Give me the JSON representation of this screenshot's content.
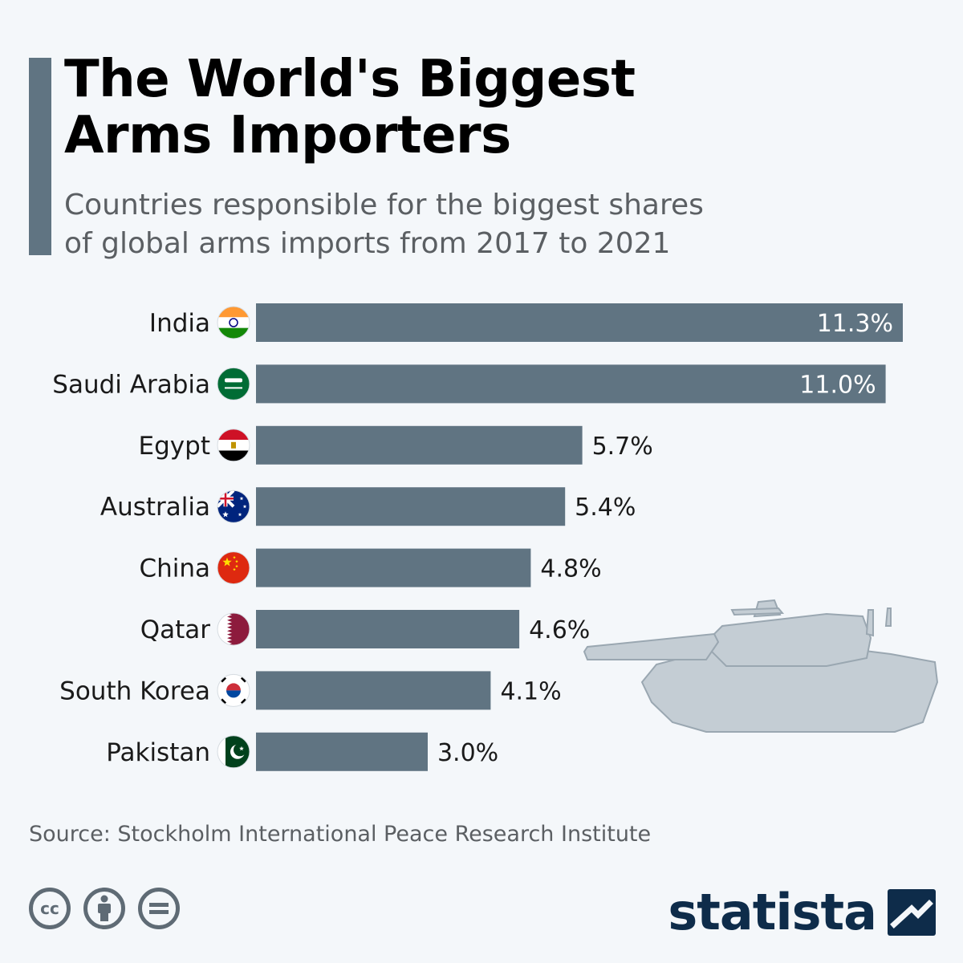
{
  "header": {
    "title_line1": "The World's Biggest",
    "title_line2": "Arms Importers",
    "subtitle_line1": "Countries responsible for the biggest shares",
    "subtitle_line2": "of global arms imports from 2017 to 2021"
  },
  "chart_data": {
    "type": "bar",
    "orientation": "horizontal",
    "categories": [
      "India",
      "Saudi Arabia",
      "Egypt",
      "Australia",
      "China",
      "Qatar",
      "South Korea",
      "Pakistan"
    ],
    "values": [
      11.3,
      11.0,
      5.7,
      5.4,
      4.8,
      4.6,
      4.1,
      3.0
    ],
    "value_labels": [
      "11.3%",
      "11.0%",
      "5.7%",
      "5.4%",
      "4.8%",
      "4.6%",
      "4.1%",
      "3.0%"
    ],
    "flag_icons": [
      "india-flag-icon",
      "saudi-arabia-flag-icon",
      "egypt-flag-icon",
      "australia-flag-icon",
      "china-flag-icon",
      "qatar-flag-icon",
      "south-korea-flag-icon",
      "pakistan-flag-icon"
    ],
    "xlim": [
      0,
      11.3
    ],
    "bar_color": "#607482",
    "grid": false,
    "legend": "none"
  },
  "decoration": {
    "image": "tank-silhouette-icon",
    "color": "#c4cdd4"
  },
  "footer": {
    "source": "Source: Stockholm International Peace Research Institute",
    "brand": "statista",
    "license_icons": [
      "creative-commons-icon",
      "attribution-icon",
      "no-derivatives-icon"
    ]
  }
}
